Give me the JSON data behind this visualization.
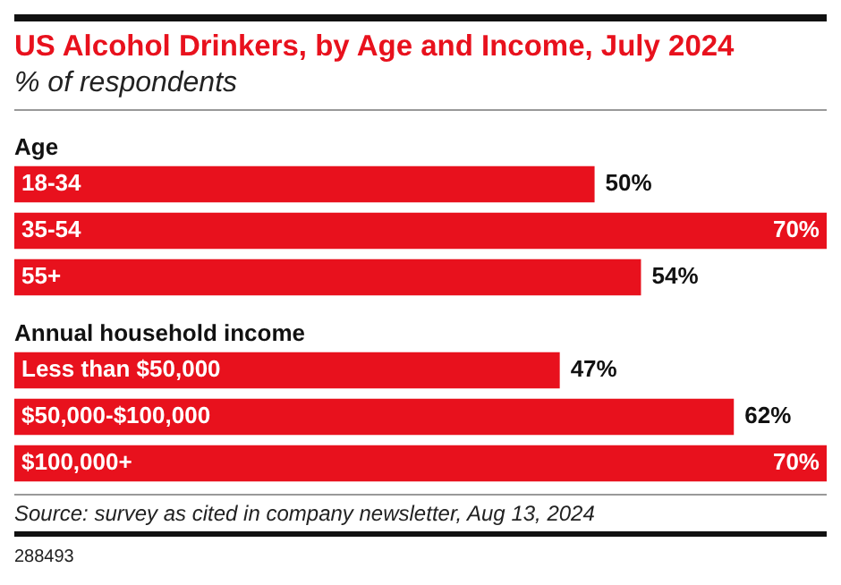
{
  "chart_data": {
    "type": "bar",
    "orientation": "horizontal",
    "title": "US Alcohol Drinkers, by Age and Income, July 2024",
    "subtitle": "% of respondents",
    "categories": [
      "18-34",
      "35-54",
      "55+",
      "Less than $50,000",
      "$50,000-$100,000",
      "$100,000+"
    ],
    "values": [
      50,
      70,
      54,
      47,
      62,
      70
    ],
    "value_labels": [
      "50%",
      "70%",
      "54%",
      "47%",
      "62%",
      "70%"
    ],
    "color": "#e8111d",
    "annotations": [
      "Age",
      "Annual household income",
      "Source: survey as cited in company newsletter, Aug 13, 2024",
      "288493"
    ]
  }
}
